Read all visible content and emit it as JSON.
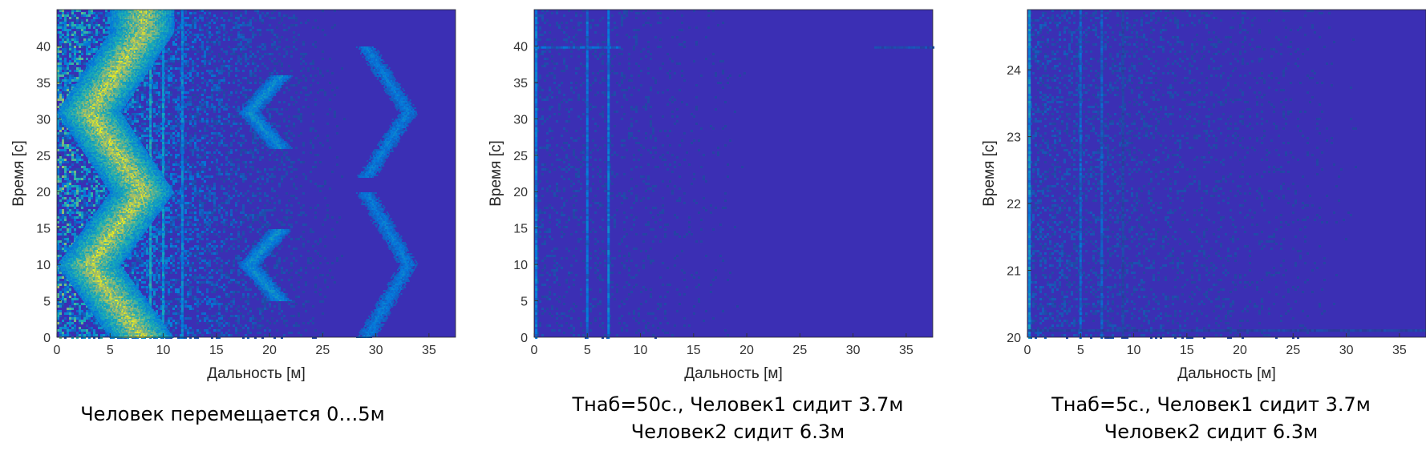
{
  "style": {
    "background": "#3b2fb4",
    "tick_color": "#333333",
    "label_color": "#262626"
  },
  "chart_data": [
    {
      "type": "heatmap",
      "xlabel": "Дальность [м]",
      "ylabel": "Время [с]",
      "xlim": [
        0,
        37.5
      ],
      "ylim": [
        0,
        45
      ],
      "xticks": [
        0,
        5,
        10,
        15,
        20,
        25,
        30,
        35
      ],
      "yticks": [
        0,
        5,
        10,
        15,
        20,
        25,
        30,
        35,
        40
      ],
      "colormap": "parula",
      "vertical_lines": [
        {
          "x": 8.8,
          "intensity": 0.55
        },
        {
          "x": 10.0,
          "intensity": 0.5
        },
        {
          "x": 11.8,
          "intensity": 0.4
        }
      ],
      "horizontal_lines": [],
      "tracks": [
        {
          "points": [
            [
              8,
              0
            ],
            [
              3,
              10
            ],
            [
              8,
              20
            ],
            [
              3,
              31
            ],
            [
              8,
              42
            ],
            [
              8,
              45
            ]
          ],
          "intensity": 1.0,
          "width": 0.5
        },
        {
          "points": [
            [
              21,
              5
            ],
            [
              18,
              10
            ],
            [
              21,
              15
            ]
          ],
          "intensity": 0.45,
          "width": 0.2
        },
        {
          "points": [
            [
              21,
              26
            ],
            [
              18,
              31
            ],
            [
              21,
              36
            ]
          ],
          "intensity": 0.45,
          "width": 0.2
        },
        {
          "points": [
            [
              29,
              0
            ],
            [
              33,
              10
            ],
            [
              29,
              20
            ]
          ],
          "intensity": 0.35,
          "width": 0.2
        },
        {
          "points": [
            [
              29,
              22
            ],
            [
              33,
              31
            ],
            [
              29,
              40
            ]
          ],
          "intensity": 0.35,
          "width": 0.2
        }
      ],
      "noise_level": 0.35,
      "noise_decay_m": 12
    },
    {
      "type": "heatmap",
      "xlabel": "Дальность [м]",
      "ylabel": "Время [с]",
      "xlim": [
        0,
        37.5
      ],
      "ylim": [
        0,
        45
      ],
      "xticks": [
        0,
        5,
        10,
        15,
        20,
        25,
        30,
        35
      ],
      "yticks": [
        0,
        5,
        10,
        15,
        20,
        25,
        30,
        35,
        40
      ],
      "colormap": "parula",
      "vertical_lines": [
        {
          "x": 0.2,
          "intensity": 0.35
        },
        {
          "x": 5.0,
          "intensity": 0.3
        },
        {
          "x": 7.0,
          "intensity": 0.35
        }
      ],
      "horizontal_lines": [
        {
          "y": 39.8,
          "x_from": 0,
          "x_to": 8,
          "intensity": 0.25
        },
        {
          "y": 39.8,
          "x_from": 32,
          "x_to": 37.5,
          "intensity": 0.15
        }
      ],
      "tracks": [],
      "noise_level": 0.06,
      "noise_decay_m": 40
    },
    {
      "type": "heatmap",
      "xlabel": "Дальность [м]",
      "ylabel": "Время [с]",
      "xlim": [
        0,
        37.5
      ],
      "ylim": [
        20,
        24.9
      ],
      "xticks": [
        0,
        5,
        10,
        15,
        20,
        25,
        30,
        35
      ],
      "yticks": [
        20,
        21,
        22,
        23,
        24
      ],
      "colormap": "parula",
      "vertical_lines": [
        {
          "x": 0.2,
          "intensity": 0.45
        },
        {
          "x": 5.0,
          "intensity": 0.25
        },
        {
          "x": 7.0,
          "intensity": 0.22
        },
        {
          "x": 9.0,
          "intensity": 0.12
        }
      ],
      "horizontal_lines": [
        {
          "y": 20.1,
          "x_from": 0,
          "x_to": 37.5,
          "intensity": 0.12
        }
      ],
      "tracks": [],
      "noise_level": 0.08,
      "noise_decay_m": 40
    }
  ],
  "captions": [
    {
      "lines": [
        "Человек перемещается 0…5м"
      ]
    },
    {
      "lines": [
        "Тнаб=50с., Человек1 сидит 3.7м",
        "Человек2 сидит 6.3м"
      ]
    },
    {
      "lines": [
        "Тнаб=5с., Человек1 сидит 3.7м",
        "Человек2 сидит 6.3м"
      ]
    }
  ]
}
